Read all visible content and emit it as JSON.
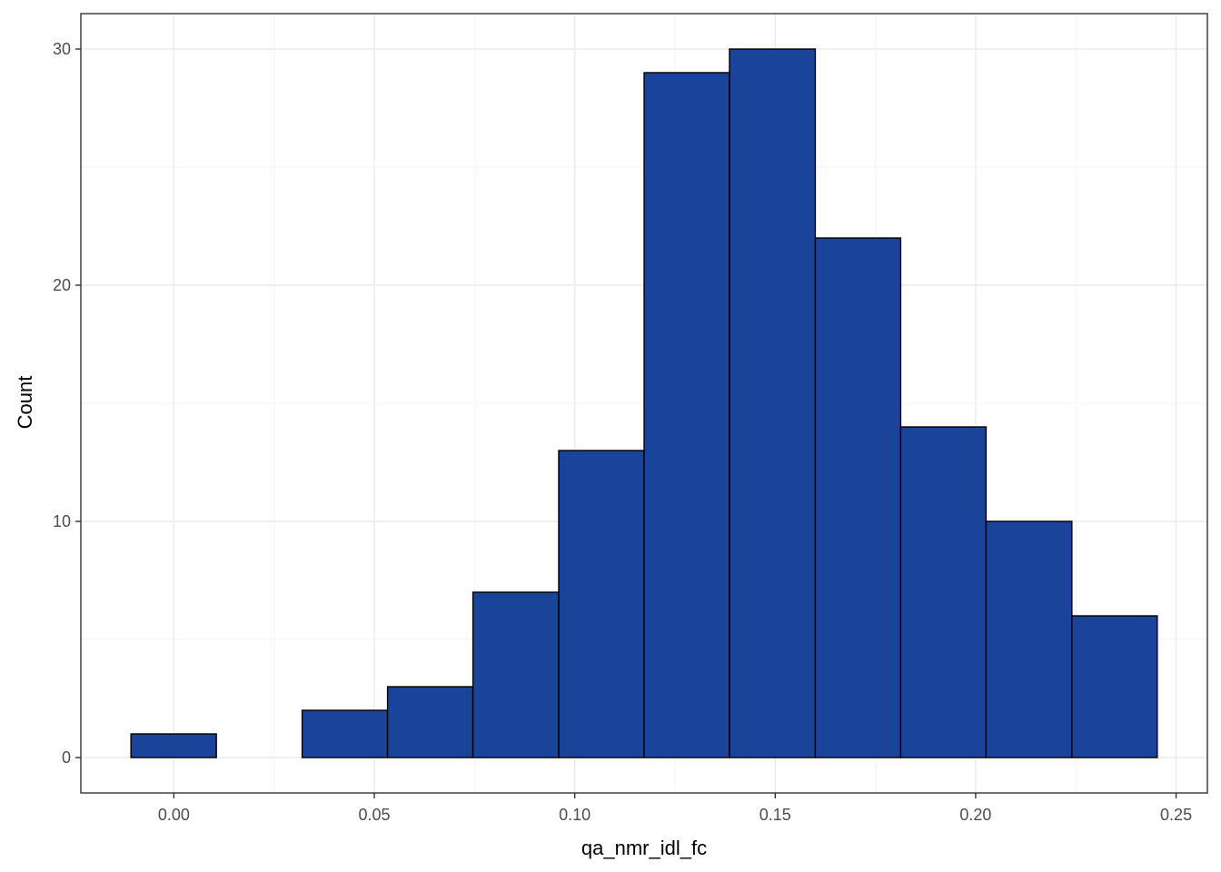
{
  "chart_data": {
    "type": "bar",
    "subtype": "histogram",
    "title": "",
    "xlabel": "qa_nmr_idl_fc",
    "ylabel": "Count",
    "bin_edges": [
      -0.0107,
      0.0106,
      0.032,
      0.0533,
      0.0746,
      0.096,
      0.1173,
      0.1386,
      0.16,
      0.1813,
      0.2026,
      0.224,
      0.2453
    ],
    "values": [
      1,
      0,
      2,
      3,
      7,
      13,
      29,
      30,
      22,
      14,
      10,
      6
    ],
    "xlim": [
      -0.0232,
      0.2578
    ],
    "ylim": [
      -1.5,
      31.5
    ],
    "x_ticks": [
      0.0,
      0.05,
      0.1,
      0.15,
      0.2,
      0.25
    ],
    "x_tick_labels": [
      "0.00",
      "0.05",
      "0.10",
      "0.15",
      "0.20",
      "0.25"
    ],
    "y_ticks": [
      0,
      10,
      20,
      30
    ],
    "y_tick_labels": [
      "0",
      "10",
      "20",
      "30"
    ],
    "x_minor_ticks": [
      0.025,
      0.075,
      0.125,
      0.175,
      0.225
    ],
    "y_minor_ticks": [
      5,
      15,
      25
    ],
    "grid": true,
    "legend": "none",
    "colors": {
      "bar_fill": "#1A4499",
      "bar_stroke": "#000000",
      "grid_major": "#EBEBEB",
      "grid_minor": "#F4F4F4",
      "panel_border": "#333333",
      "tick_text": "#4D4D4D"
    }
  }
}
